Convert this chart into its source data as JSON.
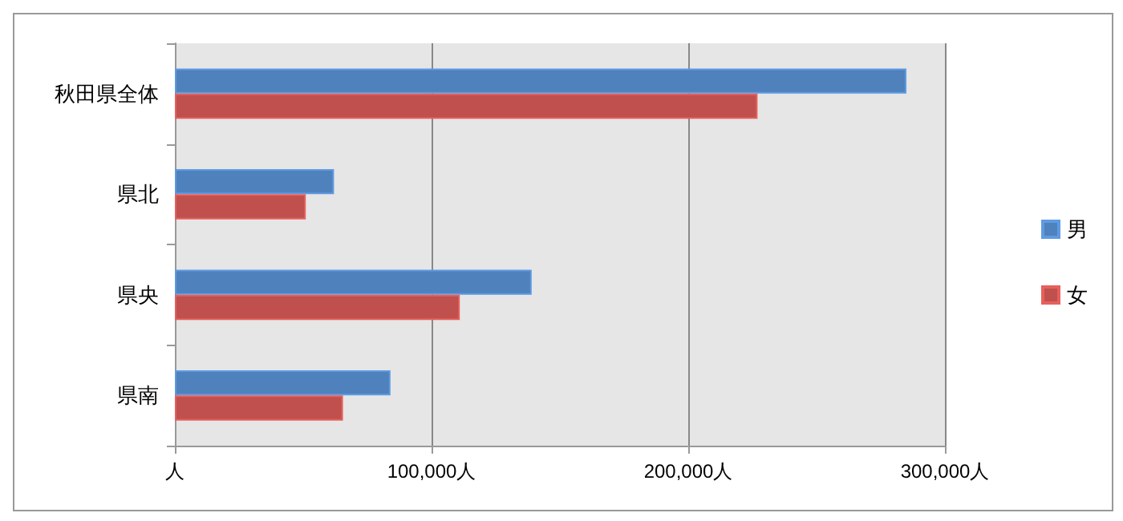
{
  "chart_data": {
    "type": "bar",
    "orientation": "horizontal",
    "categories": [
      "秋田県全体",
      "県北",
      "県央",
      "県南"
    ],
    "series": [
      {
        "name": "男",
        "color": "#4f81bd",
        "values": [
          285000,
          62000,
          139000,
          84000
        ]
      },
      {
        "name": "女",
        "color": "#c0504d",
        "values": [
          227000,
          51000,
          111000,
          65500
        ]
      }
    ],
    "xlim": [
      0,
      300000
    ],
    "xticks": [
      {
        "value": 0,
        "label": "人"
      },
      {
        "value": 100000,
        "label": "100,000人"
      },
      {
        "value": 200000,
        "label": "200,000人"
      },
      {
        "value": 300000,
        "label": "300,000人"
      }
    ],
    "grid": "x",
    "legend": "right"
  }
}
